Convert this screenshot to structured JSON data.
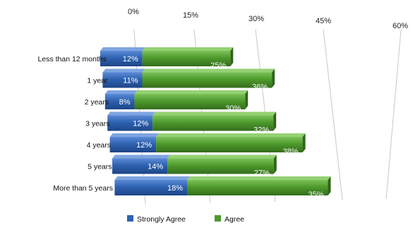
{
  "chart_data": {
    "type": "bar",
    "orientation": "horizontal",
    "stacked": true,
    "perspective_3d": true,
    "categories": [
      "Less than 12 months",
      "1 year",
      "2 years",
      "3 years",
      "4 years",
      "5 years",
      "More than 5 years"
    ],
    "series": [
      {
        "name": "Strongly Agree",
        "color": "#2e62b0",
        "values": [
          12,
          11,
          8,
          12,
          12,
          14,
          18
        ]
      },
      {
        "name": "Agree",
        "color": "#4e9a2c",
        "values": [
          25,
          36,
          30,
          32,
          38,
          27,
          35
        ]
      }
    ],
    "value_labels": [
      [
        "12%",
        "11%",
        "8%",
        "12%",
        "12%",
        "14%",
        "18%"
      ],
      [
        "25%",
        "36%",
        "30%",
        "32%",
        "38%",
        "27%",
        "35%"
      ]
    ],
    "x_ticks": [
      "0%",
      "15%",
      "30%",
      "45%",
      "60%"
    ],
    "x_tick_values": [
      0,
      15,
      30,
      45,
      60
    ],
    "xlim": [
      0,
      60
    ],
    "grid": true,
    "legend": "bottom"
  }
}
